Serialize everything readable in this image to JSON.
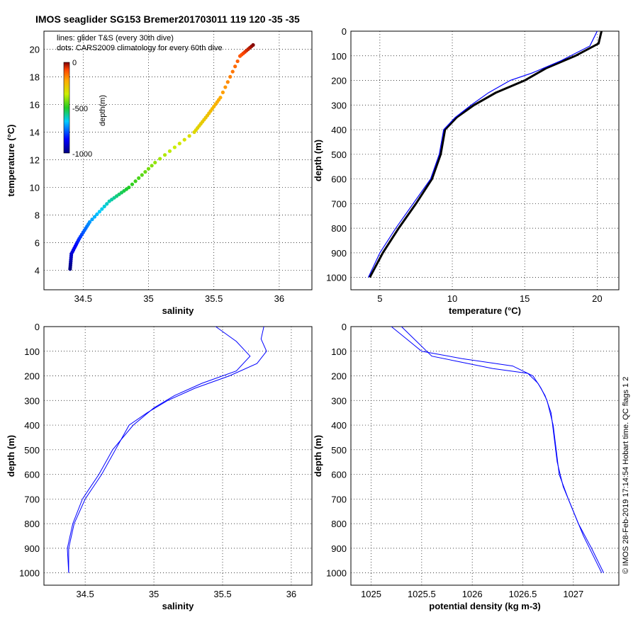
{
  "title": "IMOS seaglider SG153 Bremer201703011 119  120  -35  -35",
  "legend": {
    "line1": "lines: glider T&S (every 30th dive)",
    "line2": "dots: CARS2009 climatology for every 60th dive"
  },
  "colorbar": {
    "label": "depth(m)",
    "ticks": [
      "0",
      "-500",
      "-1000"
    ],
    "range": [
      -1000,
      0
    ]
  },
  "credit": "© IMOS 28-Feb-2019 17:14:54 Hobart time. QC flags 1  2",
  "colors": {
    "glider_line": "#0000ff",
    "climatology": "#000000"
  },
  "chart_data": [
    {
      "type": "scatter",
      "title": "",
      "xlabel": "salinity",
      "ylabel": "temperature (°C)",
      "xlim": [
        34.2,
        36.25
      ],
      "ylim": [
        2.6,
        21.3
      ],
      "xticks": [
        "34.5",
        "35",
        "35.5",
        "36"
      ],
      "yticks": [
        "4",
        "6",
        "8",
        "10",
        "12",
        "14",
        "16",
        "18",
        "20"
      ],
      "grid": true,
      "color_by": "depth (m)",
      "series": [
        {
          "depth": [
            0,
            100,
            200,
            250,
            300,
            400,
            500,
            600,
            700,
            800,
            900,
            1000
          ],
          "x": [
            35.8,
            35.7,
            35.55,
            35.45,
            35.35,
            35.05,
            34.85,
            34.7,
            34.55,
            34.47,
            34.41,
            34.4
          ],
          "y": [
            20.3,
            19.5,
            16.5,
            15.2,
            14,
            11.8,
            10,
            9,
            7.5,
            6.3,
            5.2,
            4.1
          ]
        }
      ]
    },
    {
      "type": "line",
      "xlabel": "temperature (°C)",
      "ylabel": "depth (m)",
      "xlim": [
        3,
        21.5
      ],
      "ylim": [
        1050,
        0
      ],
      "xticks": [
        "5",
        "10",
        "15",
        "20"
      ],
      "yticks": [
        "0",
        "100",
        "200",
        "300",
        "400",
        "500",
        "600",
        "700",
        "800",
        "900",
        "1000"
      ],
      "grid": true,
      "series": [
        {
          "name": "",
          "y": [
            0,
            50,
            100,
            150,
            200,
            250,
            300,
            350,
            400,
            500,
            600,
            700,
            800,
            900,
            1000
          ],
          "x": [
            20.3,
            20.1,
            18.5,
            16.5,
            15,
            13,
            11.5,
            10.3,
            9.5,
            9.2,
            8.6,
            7.5,
            6.3,
            5.2,
            4.3
          ]
        },
        {
          "name": "",
          "y": [
            0,
            60,
            120,
            170,
            200,
            250,
            300,
            350,
            400,
            500,
            600,
            700,
            800,
            900,
            1000
          ],
          "x": [
            20,
            19.5,
            17.5,
            15.5,
            14,
            12.5,
            11.3,
            10.2,
            9.4,
            9.1,
            8.5,
            7.3,
            6.1,
            5,
            4.2
          ]
        }
      ]
    },
    {
      "type": "line",
      "xlabel": "salinity",
      "ylabel": "depth (m)",
      "xlim": [
        34.2,
        36.15
      ],
      "ylim": [
        1050,
        0
      ],
      "xticks": [
        "34.5",
        "35",
        "35.5",
        "36"
      ],
      "yticks": [
        "0",
        "100",
        "200",
        "300",
        "400",
        "500",
        "600",
        "700",
        "800",
        "900",
        "1000"
      ],
      "grid": true,
      "series": [
        {
          "name": "",
          "y": [
            0,
            50,
            100,
            150,
            200,
            250,
            300,
            350,
            400,
            500,
            600,
            700,
            800,
            900,
            1000
          ],
          "x": [
            35.8,
            35.78,
            35.82,
            35.75,
            35.55,
            35.3,
            35.1,
            34.95,
            34.82,
            34.72,
            34.62,
            34.5,
            34.42,
            34.38,
            34.38
          ]
        },
        {
          "name": "",
          "y": [
            0,
            60,
            120,
            180,
            230,
            280,
            330,
            400,
            500,
            600,
            700,
            800,
            900,
            1000
          ],
          "x": [
            35.45,
            35.6,
            35.7,
            35.6,
            35.35,
            35.15,
            35.0,
            34.85,
            34.7,
            34.6,
            34.48,
            34.41,
            34.37,
            34.38
          ]
        }
      ]
    },
    {
      "type": "line",
      "xlabel": "potential density (kg m-3)",
      "ylabel": "depth (m)",
      "xlim": [
        1024.8,
        1027.45
      ],
      "ylim": [
        1050,
        0
      ],
      "xticks": [
        "1025",
        "1025.5",
        "1026",
        "1026.5",
        "1027"
      ],
      "yticks": [
        "0",
        "100",
        "200",
        "300",
        "400",
        "500",
        "600",
        "700",
        "800",
        "900",
        "1000"
      ],
      "grid": true,
      "series": [
        {
          "name": "",
          "y": [
            0,
            50,
            100,
            130,
            160,
            200,
            250,
            300,
            400,
            500,
            600,
            700,
            800,
            900,
            1000
          ],
          "x": [
            1025.2,
            1025.35,
            1025.5,
            1025.9,
            1026.4,
            1026.6,
            1026.68,
            1026.74,
            1026.8,
            1026.83,
            1026.86,
            1026.95,
            1027.05,
            1027.18,
            1027.3
          ]
        },
        {
          "name": "",
          "y": [
            0,
            60,
            120,
            170,
            190,
            230,
            280,
            350,
            450,
            550,
            650,
            750,
            850,
            950,
            1000
          ],
          "x": [
            1025.3,
            1025.45,
            1025.6,
            1026.2,
            1026.55,
            1026.65,
            1026.72,
            1026.78,
            1026.81,
            1026.84,
            1026.9,
            1027.0,
            1027.1,
            1027.22,
            1027.28
          ]
        }
      ]
    }
  ]
}
